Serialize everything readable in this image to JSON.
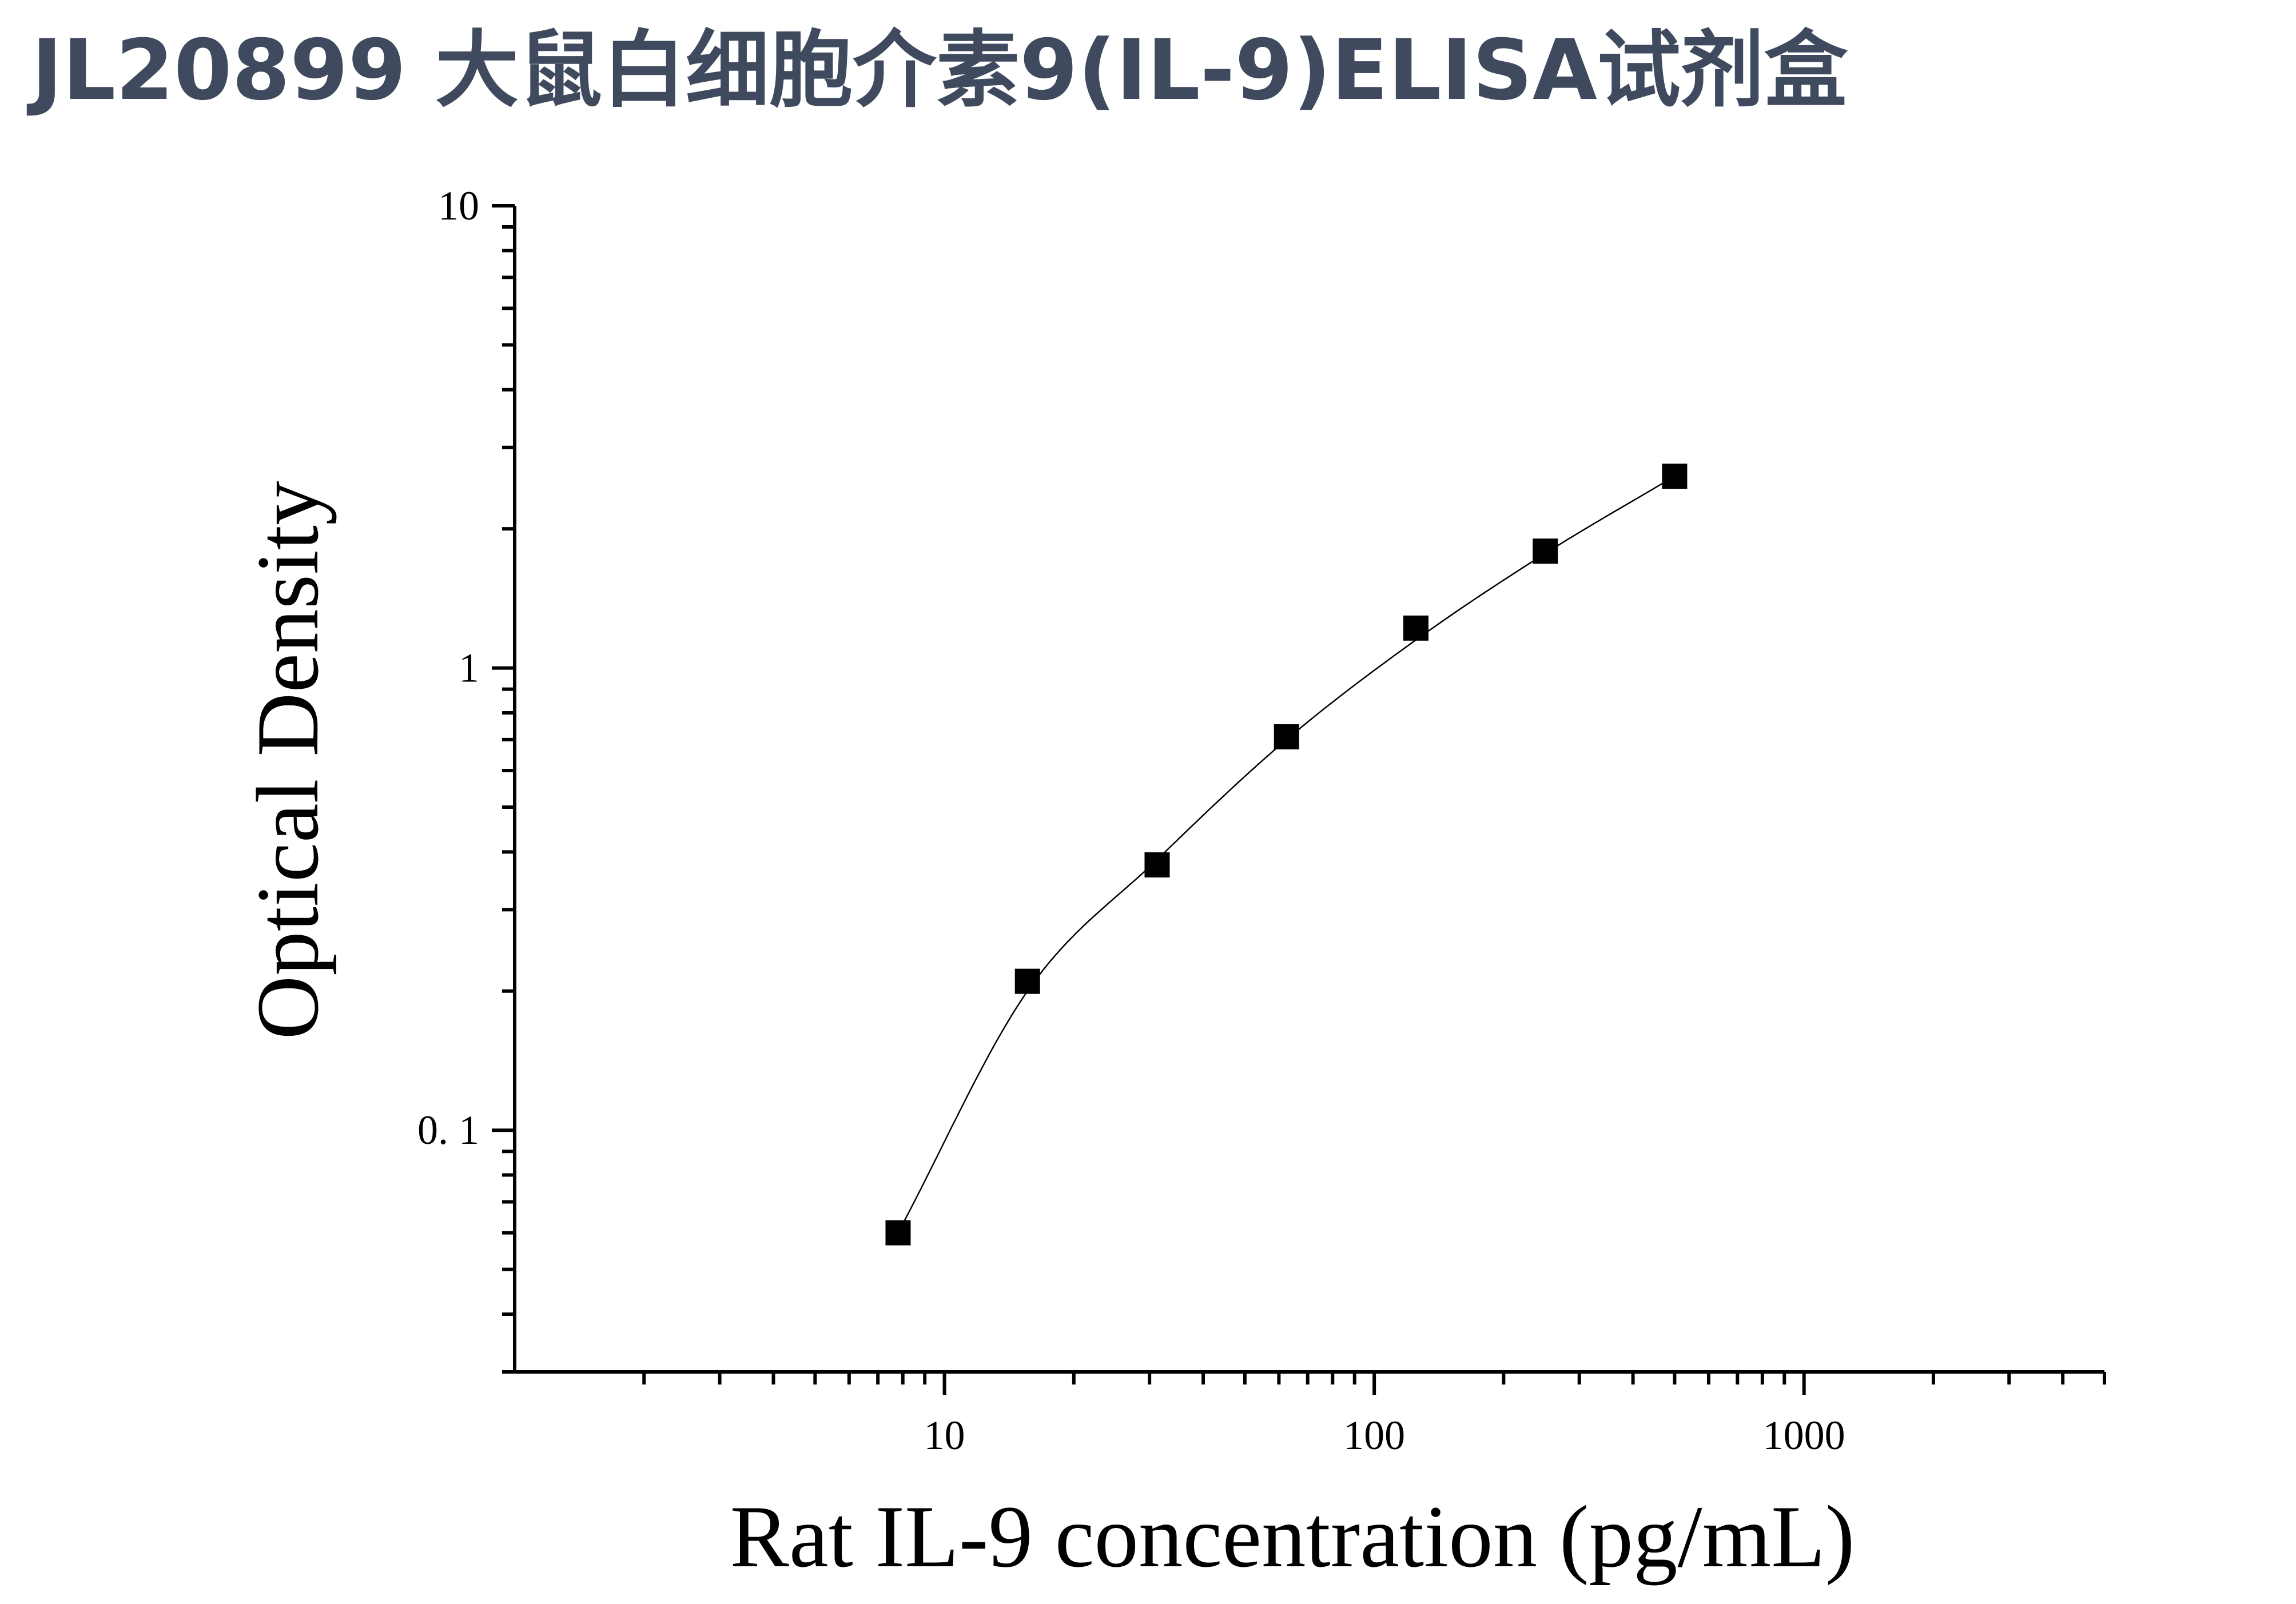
{
  "title": "JL20899 大鼠白细胞介素9(IL-9)ELISA试剂盒",
  "colors": {
    "title": "#3f4a5e",
    "axis": "#000000",
    "marker": "#000000",
    "curve": "#000000"
  },
  "chart_data": {
    "type": "scatter",
    "title": "",
    "xlabel": "Rat IL-9 concentration (pg/mL)",
    "ylabel": "Optical Density",
    "x_scale": "log",
    "y_scale": "log",
    "xlim": [
      1,
      5000
    ],
    "ylim": [
      0.03,
      10
    ],
    "x_ticks": [
      {
        "value": 10,
        "label": "10"
      },
      {
        "value": 100,
        "label": "100"
      },
      {
        "value": 1000,
        "label": "1000"
      }
    ],
    "y_ticks": [
      {
        "value": 10,
        "label": "10"
      },
      {
        "value": 1,
        "label": "1"
      },
      {
        "value": 0.1,
        "label": "0. 1"
      }
    ],
    "grid": false,
    "legend": "none",
    "series": [
      {
        "marker": "square",
        "x": [
          7.8,
          15.6,
          31.25,
          62.5,
          125,
          250,
          500
        ],
        "y": [
          0.06,
          0.21,
          0.375,
          0.71,
          1.22,
          1.79,
          2.6
        ]
      }
    ],
    "fit_curve": {
      "style": "smooth line",
      "x": [
        7.8,
        15.6,
        31.25,
        62.5,
        125,
        250,
        500
      ],
      "y": [
        0.06,
        0.2,
        0.385,
        0.7,
        1.15,
        1.77,
        2.6
      ]
    }
  }
}
